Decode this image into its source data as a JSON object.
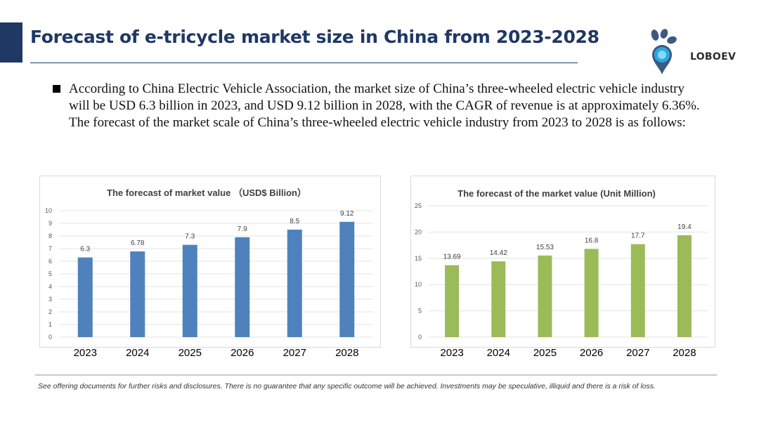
{
  "slide": {
    "title": "Forecast of e-tricycle market size in China from 2023-2028",
    "paragraph": "According to China Electric Vehicle Association, the market size of China’s three-wheeled electric vehicle industry will be USD 6.3 billion in 2023, and USD 9.12 billion in 2028, with the CAGR of revenue is at approximately 6.36%. The forecast of the market scale of China’s three-wheeled electric vehicle industry from 2023 to 2028 is as follows:",
    "disclaimer": "See offering documents for further risks and disclosures. There is no guarantee that any specific outcome will be achieved. Investments may be speculative, illiquid and there is a risk of loss."
  },
  "logo": {
    "text": "LOBOEV",
    "icon": "loboev-logo-icon"
  },
  "colors": {
    "title": "#1f3864",
    "accent_block": "#1f3864",
    "bar_blue": "#4f81bd",
    "bar_green": "#9bbb59"
  },
  "chart_data": [
    {
      "type": "bar",
      "title": "The forecast of market value （USD$ Billion）",
      "categories": [
        "2023",
        "2024",
        "2025",
        "2026",
        "2027",
        "2028"
      ],
      "values": [
        6.3,
        6.78,
        7.3,
        7.9,
        8.5,
        9.12
      ],
      "value_labels": [
        "6.3",
        "6.78",
        "7.3",
        "7.9",
        "8.5",
        "9.12"
      ],
      "ylim": [
        0,
        10
      ],
      "yticks": [
        "0",
        "1",
        "2",
        "3",
        "4",
        "5",
        "6",
        "7",
        "8",
        "9",
        "10"
      ],
      "grid": true,
      "color": "#4f81bd"
    },
    {
      "type": "bar",
      "title": "The forecast of the market value (Unit  Million)",
      "categories": [
        "2023",
        "2024",
        "2025",
        "2026",
        "2027",
        "2028"
      ],
      "values": [
        13.69,
        14.42,
        15.53,
        16.8,
        17.7,
        19.4
      ],
      "value_labels": [
        "13.69",
        "14.42",
        "15.53",
        "16.8",
        "17.7",
        "19.4"
      ],
      "ylim": [
        0,
        25
      ],
      "yticks": [
        "0",
        "5",
        "10",
        "15",
        "20",
        "25"
      ],
      "grid": true,
      "color": "#9bbb59"
    }
  ]
}
